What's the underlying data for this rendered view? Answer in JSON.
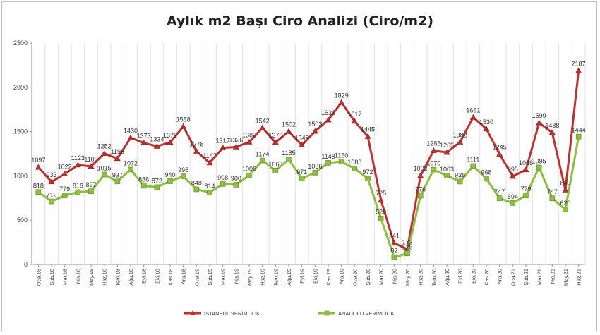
{
  "chart_data": {
    "type": "line",
    "title": "Aylık m2 Başı Ciro Analizi (Ciro/m2)",
    "xlabel": "",
    "ylabel": "",
    "ylim": [
      0,
      2500
    ],
    "yticks": [
      0,
      500,
      1000,
      1500,
      2000,
      2500
    ],
    "grid": "vertical",
    "legend": "bottom",
    "categories": [
      "Oca.18",
      "Şub.18",
      "Mar.18",
      "Nis.18",
      "May.18",
      "Haz.18",
      "Tem.18",
      "Ağu.18",
      "Eyl.18",
      "Eki.18",
      "Kas.18",
      "Ara.18",
      "Oca.19",
      "Şub.19",
      "Mar.19",
      "Nis.19",
      "May.19",
      "Haz.19",
      "Tem.19",
      "Ağu.19",
      "Eyl.19",
      "Eki.19",
      "Kas.19",
      "Ara.19",
      "Oca.20",
      "Şub.20",
      "Mar.20",
      "Nis.20",
      "May.20",
      "Haz.20",
      "Tem.20",
      "Ağu.20",
      "Eyl.20",
      "Eki.20",
      "Kas.20",
      "Ara.20",
      "Oca.21",
      "Şub.21",
      "Mar.21",
      "Nis.21",
      "May.21",
      "Haz.21"
    ],
    "series": [
      {
        "name": "İSTANBUL VERİMLİLİK",
        "color": "#c0302f",
        "values": [
          1097,
          933,
          1022,
          1123,
          1108,
          1252,
          1196,
          1430,
          1373,
          1334,
          1379,
          1558,
          1278,
          1147,
          1317,
          1326,
          1382,
          1542,
          1378,
          1502,
          1348,
          1503,
          1632,
          1829,
          1617,
          1445,
          725,
          241,
          172,
          1002,
          1285,
          1265,
          1382,
          1661,
          1530,
          1245,
          995,
          1068,
          1599,
          1488,
          840,
          2187
        ],
        "labels": [
          "1097",
          "933",
          "1022",
          "1123",
          "1108",
          "1252",
          "1196",
          "1430",
          "1373",
          "1334",
          "1379",
          "1558",
          "1278",
          "1147",
          "1317",
          "1326",
          "1382",
          "1542",
          "1378",
          "1502",
          "1348",
          "1503",
          "1632",
          "1829",
          "1617",
          "1445",
          "725",
          "241",
          "172",
          "1002",
          "1285",
          "1265",
          "1382",
          "1661",
          "1530",
          "1245",
          "995",
          "1068",
          "1599",
          "1488",
          "840",
          "2187"
        ]
      },
      {
        "name": "ANADOLU VERİMLİLİK",
        "color": "#8cbf3f",
        "values": [
          818,
          712,
          779,
          816,
          827,
          1015,
          937,
          1072,
          888,
          872,
          940,
          995,
          848,
          814,
          908,
          900,
          1006,
          1174,
          1060,
          1185,
          971,
          1036,
          1148,
          1160,
          1083,
          972,
          520,
          82,
          125,
          776,
          1070,
          1003,
          936,
          1111,
          968,
          747,
          694,
          779,
          1095,
          747,
          620,
          1444
        ],
        "labels": [
          "818",
          "712",
          "779",
          "816",
          "827",
          "1015",
          "937",
          "1072",
          "888",
          "872",
          "940",
          "995",
          "848",
          "814",
          "908",
          "900",
          "1006",
          "1174",
          "1060",
          "1185",
          "971",
          "1036",
          "1148",
          "1160",
          "1083",
          "972",
          "520",
          "82",
          "125",
          "776",
          "1070",
          "1003",
          "936",
          "1111",
          "968",
          "747",
          "694",
          "779",
          "1095",
          "747",
          "620",
          "1444"
        ]
      }
    ]
  }
}
